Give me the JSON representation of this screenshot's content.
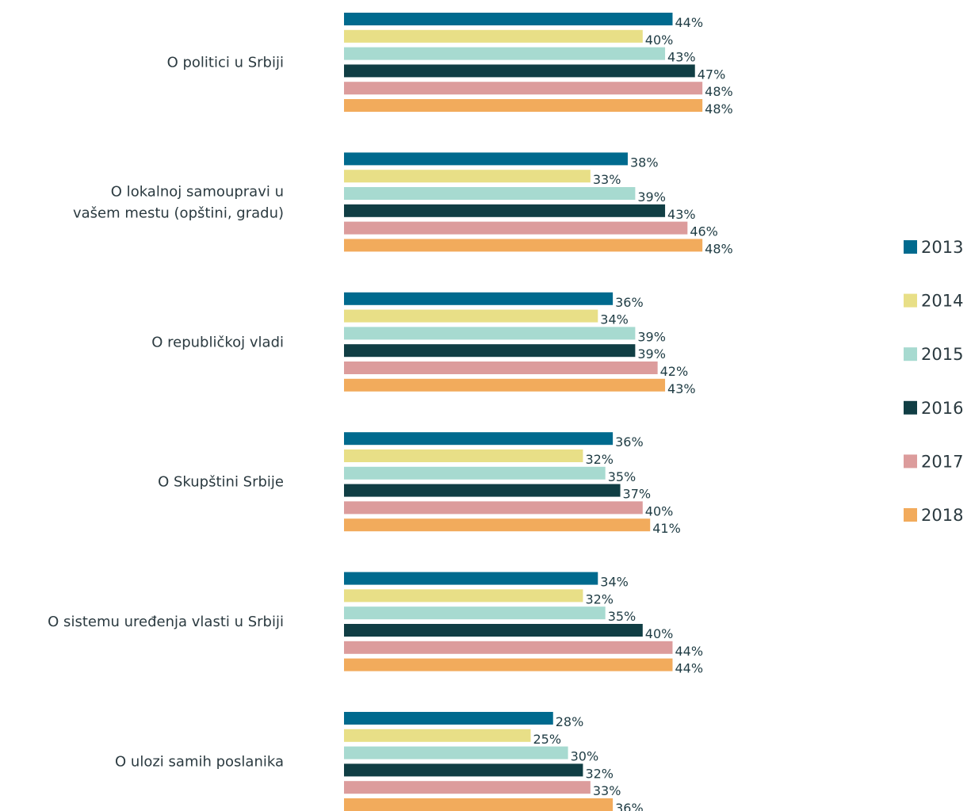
{
  "chart_data": {
    "type": "bar",
    "orientation": "horizontal",
    "categories": [
      [
        "O politici u Srbiji"
      ],
      [
        "O lokalnoj samoupravi u",
        "vašem mestu (opštini, gradu)"
      ],
      [
        "O republičkoj vladi"
      ],
      [
        "O Skupštini Srbije"
      ],
      [
        "O sistemu uređenja vlasti u Srbiji"
      ],
      [
        "O ulozi samih poslanika"
      ]
    ],
    "series": [
      {
        "name": "2013",
        "color": "#006a8e",
        "values": [
          44,
          38,
          36,
          36,
          34,
          28
        ]
      },
      {
        "name": "2014",
        "color": "#e8df87",
        "values": [
          40,
          33,
          34,
          32,
          32,
          25
        ]
      },
      {
        "name": "2015",
        "color": "#a7dad0",
        "values": [
          43,
          39,
          39,
          35,
          35,
          30
        ]
      },
      {
        "name": "2016",
        "color": "#103e44",
        "values": [
          47,
          43,
          39,
          37,
          40,
          32
        ]
      },
      {
        "name": "2017",
        "color": "#dc9c9c",
        "values": [
          48,
          46,
          42,
          40,
          44,
          33
        ]
      },
      {
        "name": "2018",
        "color": "#f2ab5c",
        "values": [
          48,
          48,
          43,
          41,
          44,
          36
        ]
      }
    ],
    "value_suffix": "%",
    "xlim": [
      0,
      100
    ],
    "grid": false,
    "legend_position": "right"
  }
}
